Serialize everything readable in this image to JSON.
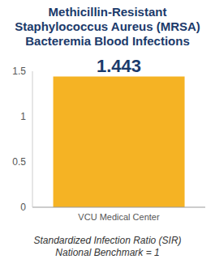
{
  "chart_data": {
    "type": "bar",
    "title": "Methicillin-Resistant Staphylococcus Aureus (MRSA) Bacteremia Blood Infections",
    "categories": [
      "VCU Medical Center"
    ],
    "values": [
      1.443
    ],
    "color": "#f5b324",
    "ylim": [
      0,
      1.5
    ],
    "yticks": [
      0,
      0.5,
      1,
      1.5
    ],
    "grid": false,
    "data_labels": true,
    "annotations": [
      "Standardized Infection Ratio (SIR)",
      "National Benchmark = 1"
    ]
  }
}
